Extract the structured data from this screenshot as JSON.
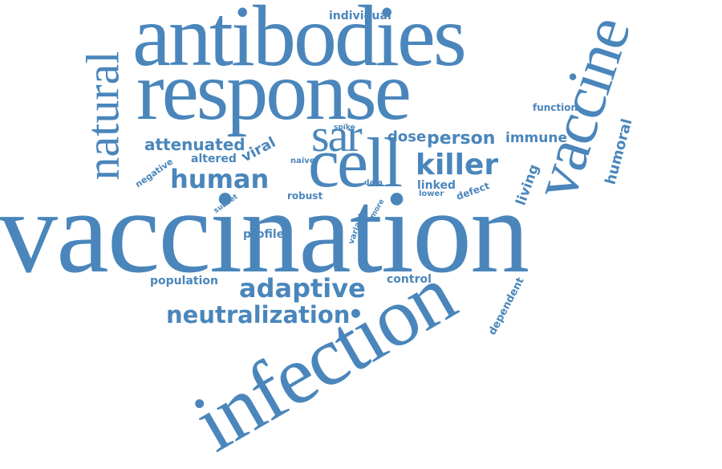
{
  "word_color": "#4a86bb",
  "background": "#ffffff",
  "words": {
    "vaccination": "vaccination",
    "antibodies": "antibodies",
    "response": "response",
    "infection": "infection",
    "vaccine": "vaccine",
    "natural": "natural",
    "cell": "cell",
    "sar": "sar",
    "killer": "killer",
    "human": "human",
    "adaptive": "adaptive",
    "neutralization": "neutralization",
    "attenuated": "attenuated",
    "dose": "dose",
    "person": "person",
    "immune": "immune",
    "humoral": "humoral",
    "living": "living",
    "viral": "viral",
    "altered": "altered",
    "linked": "linked",
    "individual": "individual",
    "function": "function",
    "population": "population",
    "control": "control",
    "profile": "profile",
    "dependent": "dependent",
    "defect": "defect",
    "negative": "negative",
    "robust": "robust",
    "lower": "lower",
    "variant": "variant",
    "data": "data",
    "spike": "spike",
    "naive": "naïve",
    "subset": "subset",
    "more": "more"
  }
}
